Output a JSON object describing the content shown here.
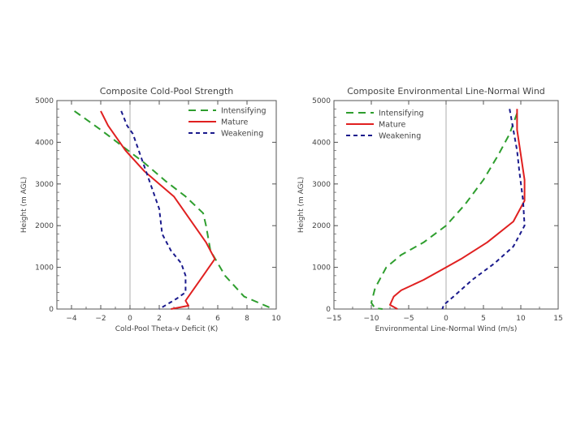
{
  "chart_data": [
    {
      "type": "line",
      "title": "Composite Cold-Pool Strength",
      "xlabel": "Cold-Pool Theta-v Deficit (K)",
      "ylabel": "Height (m AGL)",
      "xlim": [
        -5,
        10
      ],
      "ylim": [
        0,
        5000
      ],
      "xticks": [
        -4,
        -2,
        0,
        2,
        4,
        6,
        8,
        10
      ],
      "yticks": [
        0,
        1000,
        2000,
        3000,
        4000,
        5000
      ],
      "vline": 0,
      "legend": "top-right",
      "series": [
        {
          "name": "Intensifying",
          "color": "#2e9e2e",
          "dash": "9,6",
          "points": [
            [
              -3.8,
              4750
            ],
            [
              -2.0,
              4300
            ],
            [
              -0.5,
              3900
            ],
            [
              1.0,
              3500
            ],
            [
              2.5,
              3050
            ],
            [
              3.8,
              2700
            ],
            [
              5.0,
              2300
            ],
            [
              5.2,
              2000
            ],
            [
              5.5,
              1400
            ],
            [
              6.5,
              800
            ],
            [
              7.8,
              300
            ],
            [
              9.8,
              0
            ]
          ]
        },
        {
          "name": "Mature",
          "color": "#e02020",
          "dash": "",
          "points": [
            [
              -2.0,
              4750
            ],
            [
              -1.5,
              4400
            ],
            [
              -0.3,
              3800
            ],
            [
              1.0,
              3300
            ],
            [
              3.0,
              2700
            ],
            [
              4.0,
              2200
            ],
            [
              5.2,
              1600
            ],
            [
              5.8,
              1200
            ],
            [
              5.0,
              800
            ],
            [
              4.2,
              400
            ],
            [
              3.8,
              200
            ],
            [
              4.0,
              80
            ],
            [
              2.8,
              0
            ]
          ]
        },
        {
          "name": "Weakening",
          "color": "#1a1a8c",
          "dash": "5,4",
          "points": [
            [
              -0.6,
              4750
            ],
            [
              -0.2,
              4400
            ],
            [
              0.2,
              4200
            ],
            [
              0.6,
              3800
            ],
            [
              1.2,
              3200
            ],
            [
              1.6,
              2800
            ],
            [
              2.0,
              2400
            ],
            [
              2.2,
              1800
            ],
            [
              2.8,
              1400
            ],
            [
              3.5,
              1100
            ],
            [
              3.8,
              800
            ],
            [
              3.8,
              400
            ],
            [
              3.2,
              250
            ],
            [
              2.0,
              0
            ]
          ]
        }
      ]
    },
    {
      "type": "line",
      "title": "Composite Environmental Line-Normal Wind",
      "xlabel": "Environmental Line-Normal Wind (m/s)",
      "ylabel": "Height (m AGL)",
      "xlim": [
        -15,
        15
      ],
      "ylim": [
        0,
        5000
      ],
      "xticks": [
        -15,
        -10,
        -5,
        0,
        5,
        10,
        15
      ],
      "yticks": [
        0,
        1000,
        2000,
        3000,
        4000,
        5000
      ],
      "vline": 0,
      "legend": "top-left",
      "series": [
        {
          "name": "Intensifying",
          "color": "#2e9e2e",
          "dash": "9,6",
          "points": [
            [
              9.5,
              4700
            ],
            [
              8.5,
              4200
            ],
            [
              7.0,
              3700
            ],
            [
              5.0,
              3100
            ],
            [
              2.5,
              2500
            ],
            [
              0.0,
              2000
            ],
            [
              -3.0,
              1600
            ],
            [
              -6.0,
              1300
            ],
            [
              -8.0,
              1000
            ],
            [
              -9.5,
              500
            ],
            [
              -10.0,
              150
            ],
            [
              -9.5,
              20
            ],
            [
              -8.5,
              0
            ]
          ]
        },
        {
          "name": "Mature",
          "color": "#e02020",
          "dash": "",
          "points": [
            [
              9.5,
              4800
            ],
            [
              9.5,
              4300
            ],
            [
              10.0,
              3700
            ],
            [
              10.5,
              3100
            ],
            [
              10.5,
              2600
            ],
            [
              9.0,
              2100
            ],
            [
              5.5,
              1600
            ],
            [
              2.0,
              1200
            ],
            [
              0.0,
              1000
            ],
            [
              -3.0,
              700
            ],
            [
              -6.0,
              450
            ],
            [
              -7.0,
              300
            ],
            [
              -7.5,
              100
            ],
            [
              -6.5,
              0
            ]
          ]
        },
        {
          "name": "Weakening",
          "color": "#1a1a8c",
          "dash": "5,4",
          "points": [
            [
              8.5,
              4800
            ],
            [
              9.0,
              4300
            ],
            [
              9.5,
              3800
            ],
            [
              9.8,
              3300
            ],
            [
              10.3,
              2600
            ],
            [
              10.5,
              2000
            ],
            [
              9.0,
              1500
            ],
            [
              6.5,
              1100
            ],
            [
              3.5,
              700
            ],
            [
              1.0,
              300
            ],
            [
              -0.3,
              100
            ],
            [
              -0.5,
              0
            ]
          ]
        }
      ]
    }
  ]
}
